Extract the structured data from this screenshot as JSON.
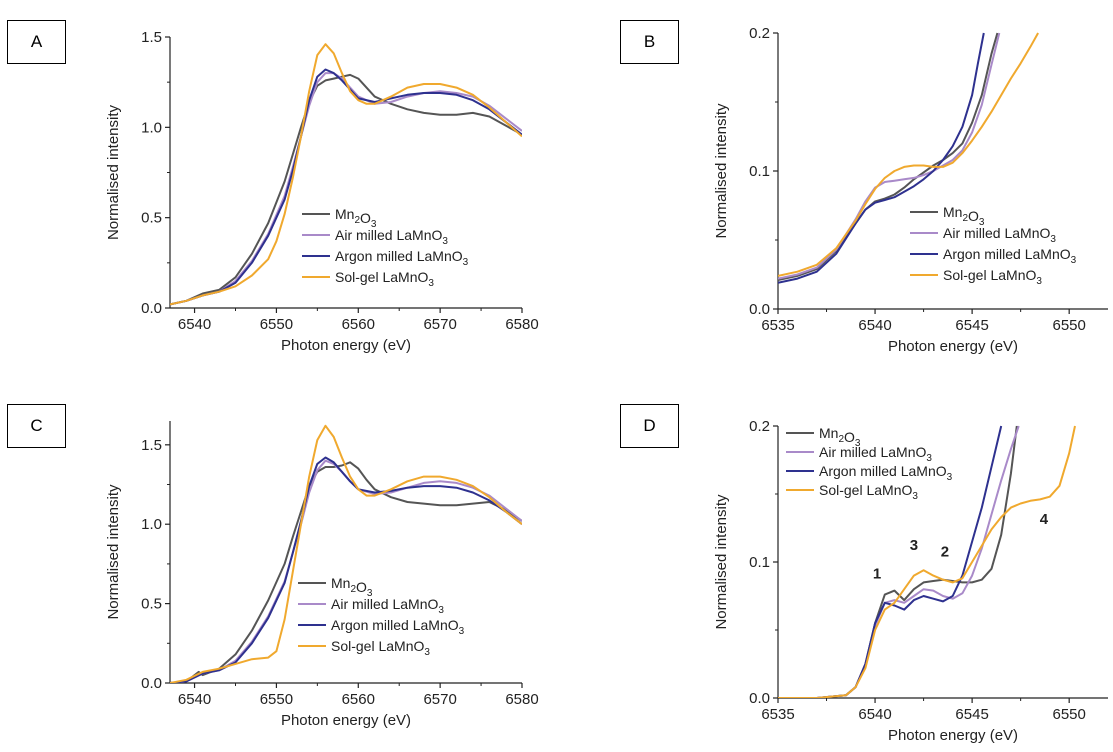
{
  "colors": {
    "mn2o3": "#555555",
    "air": "#a98ac9",
    "argon": "#2e318f",
    "solgel": "#f0a92e"
  },
  "chart_data": [
    {
      "panel": "A",
      "type": "line",
      "xlabel": "Photon energy (eV)",
      "ylabel": "Normalised intensity",
      "xlim": [
        6537,
        6580
      ],
      "ylim": [
        0,
        1.5
      ],
      "xticks": [
        6540,
        6550,
        6560,
        6570,
        6580
      ],
      "yticks": [
        0.0,
        0.5,
        1.0,
        1.5
      ],
      "ytick_labels": [
        "0.0",
        "0.5",
        "1.0",
        "1.5"
      ],
      "grid": false,
      "legend_position": "lower-right",
      "series": [
        {
          "name": "Mn<sub>2</sub>O<sub>3</sub>",
          "color_key": "mn2o3",
          "x": [
            6537,
            6539,
            6541,
            6543,
            6545,
            6547,
            6549,
            6551,
            6552,
            6553,
            6554,
            6555,
            6556,
            6557,
            6558,
            6559,
            6560,
            6561,
            6562,
            6564,
            6566,
            6568,
            6570,
            6572,
            6574,
            6576,
            6578,
            6580
          ],
          "y": [
            0.02,
            0.04,
            0.08,
            0.1,
            0.17,
            0.3,
            0.47,
            0.7,
            0.85,
            1.0,
            1.14,
            1.23,
            1.26,
            1.27,
            1.28,
            1.29,
            1.27,
            1.22,
            1.17,
            1.13,
            1.1,
            1.08,
            1.07,
            1.07,
            1.08,
            1.06,
            1.01,
            0.96
          ]
        },
        {
          "name": "Air milled LaMnO<sub>3</sub>",
          "color_key": "air",
          "x": [
            6537,
            6539,
            6541,
            6543,
            6545,
            6547,
            6549,
            6551,
            6552,
            6553,
            6554,
            6555,
            6556,
            6557,
            6558,
            6559,
            6560,
            6562,
            6564,
            6566,
            6568,
            6570,
            6572,
            6574,
            6576,
            6578,
            6580
          ],
          "y": [
            0.02,
            0.04,
            0.07,
            0.09,
            0.15,
            0.26,
            0.41,
            0.62,
            0.78,
            0.95,
            1.12,
            1.25,
            1.3,
            1.3,
            1.27,
            1.22,
            1.17,
            1.13,
            1.14,
            1.17,
            1.19,
            1.2,
            1.19,
            1.17,
            1.12,
            1.05,
            0.98
          ]
        },
        {
          "name": "Argon milled LaMnO<sub>3</sub>",
          "color_key": "argon",
          "x": [
            6537,
            6539,
            6541,
            6543,
            6545,
            6547,
            6549,
            6551,
            6552,
            6553,
            6554,
            6555,
            6556,
            6557,
            6558,
            6559,
            6560,
            6562,
            6564,
            6566,
            6568,
            6570,
            6572,
            6574,
            6576,
            6578,
            6580
          ],
          "y": [
            0.02,
            0.04,
            0.07,
            0.09,
            0.14,
            0.25,
            0.4,
            0.6,
            0.76,
            0.95,
            1.15,
            1.28,
            1.32,
            1.3,
            1.26,
            1.21,
            1.16,
            1.14,
            1.16,
            1.18,
            1.19,
            1.19,
            1.18,
            1.15,
            1.1,
            1.03,
            0.96
          ]
        },
        {
          "name": "Sol-gel LaMnO<sub>3</sub>",
          "color_key": "solgel",
          "x": [
            6537,
            6539,
            6541,
            6543,
            6545,
            6547,
            6549,
            6550,
            6551,
            6552,
            6553,
            6554,
            6555,
            6556,
            6557,
            6558,
            6559,
            6560,
            6561,
            6562,
            6564,
            6566,
            6568,
            6570,
            6572,
            6574,
            6576,
            6578,
            6580
          ],
          "y": [
            0.02,
            0.04,
            0.07,
            0.09,
            0.12,
            0.18,
            0.27,
            0.37,
            0.52,
            0.72,
            0.95,
            1.2,
            1.4,
            1.46,
            1.41,
            1.3,
            1.2,
            1.15,
            1.13,
            1.13,
            1.17,
            1.22,
            1.24,
            1.24,
            1.22,
            1.18,
            1.11,
            1.03,
            0.95
          ]
        }
      ]
    },
    {
      "panel": "B",
      "type": "line",
      "xlabel": "Photon energy (eV)",
      "ylabel": "Normalised intensity",
      "xlim": [
        6535,
        6552
      ],
      "ylim": [
        0,
        0.2
      ],
      "xticks": [
        6535,
        6540,
        6545,
        6550
      ],
      "yticks": [
        0.0,
        0.1,
        0.2
      ],
      "ytick_labels": [
        "0.0",
        "0.1",
        "0.2"
      ],
      "grid": false,
      "legend_position": "lower-right",
      "series": [
        {
          "name": "Mn<sub>2</sub>O<sub>3</sub>",
          "color_key": "mn2o3",
          "x": [
            6535,
            6536,
            6537,
            6538,
            6539,
            6539.5,
            6540,
            6540.5,
            6541,
            6541.5,
            6542,
            6542.5,
            6543,
            6543.5,
            6544,
            6544.5,
            6545,
            6545.5,
            6546,
            6546.3
          ],
          "y": [
            0.021,
            0.024,
            0.029,
            0.042,
            0.062,
            0.072,
            0.078,
            0.08,
            0.083,
            0.088,
            0.094,
            0.099,
            0.104,
            0.108,
            0.113,
            0.12,
            0.135,
            0.155,
            0.185,
            0.2
          ]
        },
        {
          "name": "Air milled LaMnO<sub>3</sub>",
          "color_key": "air",
          "x": [
            6535,
            6536,
            6537,
            6538,
            6539,
            6539.5,
            6540,
            6540.5,
            6541,
            6541.5,
            6542,
            6542.5,
            6543,
            6543.5,
            6544,
            6544.5,
            6545,
            6545.5,
            6546,
            6546.4
          ],
          "y": [
            0.022,
            0.025,
            0.03,
            0.043,
            0.065,
            0.078,
            0.088,
            0.092,
            0.093,
            0.094,
            0.095,
            0.097,
            0.1,
            0.104,
            0.108,
            0.115,
            0.128,
            0.148,
            0.177,
            0.2
          ]
        },
        {
          "name": "Argon milled LaMnO<sub>3</sub>",
          "color_key": "argon",
          "x": [
            6535,
            6536,
            6537,
            6538,
            6539,
            6539.5,
            6540,
            6540.5,
            6541,
            6541.5,
            6542,
            6542.5,
            6543,
            6543.5,
            6544,
            6544.5,
            6545,
            6545.3,
            6545.6
          ],
          "y": [
            0.019,
            0.022,
            0.027,
            0.04,
            0.062,
            0.072,
            0.077,
            0.079,
            0.081,
            0.085,
            0.089,
            0.094,
            0.1,
            0.108,
            0.118,
            0.132,
            0.155,
            0.178,
            0.2
          ]
        },
        {
          "name": "Sol-gel LaMnO<sub>3</sub>",
          "color_key": "solgel",
          "x": [
            6535,
            6536,
            6537,
            6538,
            6539,
            6539.5,
            6540,
            6540.5,
            6541,
            6541.5,
            6542,
            6542.5,
            6543,
            6543.5,
            6544,
            6544.5,
            6545,
            6545.5,
            6546,
            6546.5,
            6547,
            6547.5,
            6548,
            6548.4
          ],
          "y": [
            0.024,
            0.027,
            0.032,
            0.044,
            0.064,
            0.076,
            0.087,
            0.095,
            0.1,
            0.103,
            0.104,
            0.104,
            0.103,
            0.103,
            0.106,
            0.113,
            0.122,
            0.132,
            0.143,
            0.155,
            0.167,
            0.178,
            0.19,
            0.2
          ]
        }
      ]
    },
    {
      "panel": "C",
      "type": "line",
      "xlabel": "Photon energy (eV)",
      "ylabel": "Normalised intensity",
      "xlim": [
        6537,
        6580
      ],
      "ylim": [
        0,
        1.65
      ],
      "xticks": [
        6540,
        6550,
        6560,
        6570,
        6580
      ],
      "yticks": [
        0.0,
        0.5,
        1.0,
        1.5
      ],
      "ytick_labels": [
        "0.0",
        "0.5",
        "1.0",
        "1.5"
      ],
      "grid": false,
      "legend_position": "lower-right",
      "series": [
        {
          "name": "Mn<sub>2</sub>O<sub>3</sub>",
          "color_key": "mn2o3",
          "x": [
            6537,
            6539,
            6540.5,
            6541,
            6542,
            6543,
            6545,
            6547,
            6549,
            6551,
            6552,
            6553,
            6554,
            6555,
            6556,
            6557,
            6558,
            6559,
            6560,
            6561,
            6562,
            6564,
            6566,
            6568,
            6570,
            6572,
            6574,
            6576,
            6578,
            6580
          ],
          "y": [
            0.0,
            0.01,
            0.07,
            0.05,
            0.07,
            0.09,
            0.18,
            0.33,
            0.52,
            0.75,
            0.92,
            1.08,
            1.24,
            1.33,
            1.36,
            1.36,
            1.37,
            1.39,
            1.35,
            1.28,
            1.22,
            1.17,
            1.14,
            1.13,
            1.12,
            1.12,
            1.13,
            1.14,
            1.09,
            1.02
          ]
        },
        {
          "name": "Air milled LaMnO<sub>3</sub>",
          "color_key": "air",
          "x": [
            6537,
            6539,
            6541,
            6543,
            6545,
            6547,
            6549,
            6551,
            6552,
            6553,
            6554,
            6555,
            6556,
            6557,
            6558,
            6559,
            6560,
            6562,
            6564,
            6566,
            6568,
            6570,
            6572,
            6574,
            6576,
            6578,
            6580
          ],
          "y": [
            0.0,
            0.01,
            0.06,
            0.08,
            0.14,
            0.26,
            0.42,
            0.64,
            0.82,
            1.0,
            1.2,
            1.34,
            1.4,
            1.38,
            1.33,
            1.27,
            1.22,
            1.19,
            1.2,
            1.23,
            1.26,
            1.27,
            1.26,
            1.23,
            1.18,
            1.1,
            1.02
          ]
        },
        {
          "name": "Argon milled LaMnO<sub>3</sub>",
          "color_key": "argon",
          "x": [
            6537,
            6539,
            6541,
            6543,
            6545,
            6547,
            6549,
            6551,
            6552,
            6553,
            6554,
            6555,
            6556,
            6557,
            6558,
            6559,
            6560,
            6562,
            6564,
            6566,
            6568,
            6570,
            6572,
            6574,
            6576,
            6578,
            6580
          ],
          "y": [
            0.0,
            0.01,
            0.06,
            0.08,
            0.13,
            0.25,
            0.41,
            0.63,
            0.82,
            1.02,
            1.24,
            1.38,
            1.42,
            1.39,
            1.33,
            1.27,
            1.22,
            1.2,
            1.21,
            1.23,
            1.24,
            1.24,
            1.23,
            1.2,
            1.15,
            1.08,
            1.0
          ]
        },
        {
          "name": "Sol-gel LaMnO<sub>3</sub>",
          "color_key": "solgel",
          "x": [
            6537,
            6539,
            6541,
            6543,
            6545,
            6547,
            6549,
            6550,
            6551,
            6552,
            6553,
            6554,
            6555,
            6556,
            6557,
            6558,
            6559,
            6560,
            6561,
            6562,
            6564,
            6566,
            6568,
            6570,
            6572,
            6574,
            6576,
            6578,
            6580
          ],
          "y": [
            0.0,
            0.02,
            0.07,
            0.09,
            0.12,
            0.15,
            0.16,
            0.2,
            0.4,
            0.7,
            1.0,
            1.3,
            1.53,
            1.62,
            1.55,
            1.42,
            1.3,
            1.22,
            1.18,
            1.18,
            1.22,
            1.27,
            1.3,
            1.3,
            1.28,
            1.24,
            1.17,
            1.08,
            1.0
          ]
        }
      ]
    },
    {
      "panel": "D",
      "type": "line",
      "xlabel": "Photon energy (eV)",
      "ylabel": "Normalised intensity",
      "xlim": [
        6535,
        6552
      ],
      "ylim": [
        0,
        0.2
      ],
      "xticks": [
        6535,
        6540,
        6545,
        6550
      ],
      "yticks": [
        0.0,
        0.1,
        0.2
      ],
      "ytick_labels": [
        "0.0",
        "0.1",
        "0.2"
      ],
      "grid": false,
      "legend_position": "top-left",
      "annotations": [
        {
          "text": "1",
          "x": 6540.1,
          "y": 0.088
        },
        {
          "text": "3",
          "x": 6542.0,
          "y": 0.109
        },
        {
          "text": "2",
          "x": 6543.6,
          "y": 0.104
        },
        {
          "text": "4",
          "x": 6548.7,
          "y": 0.128
        }
      ],
      "series": [
        {
          "name": "Mn<sub>2</sub>O<sub>3</sub>",
          "color_key": "mn2o3",
          "x": [
            6535,
            6537,
            6538.5,
            6539,
            6539.5,
            6540,
            6540.5,
            6541,
            6541.5,
            6542,
            6542.5,
            6543,
            6543.5,
            6544,
            6544.5,
            6545,
            6545.5,
            6546,
            6546.5,
            6547,
            6547.3
          ],
          "y": [
            0.0,
            0.0,
            0.002,
            0.008,
            0.025,
            0.055,
            0.076,
            0.079,
            0.072,
            0.08,
            0.085,
            0.086,
            0.087,
            0.086,
            0.085,
            0.085,
            0.087,
            0.095,
            0.12,
            0.165,
            0.2
          ]
        },
        {
          "name": "Air milled LaMnO<sub>3</sub>",
          "color_key": "air",
          "x": [
            6535,
            6537,
            6538.5,
            6539,
            6539.5,
            6540,
            6540.5,
            6541,
            6541.5,
            6542,
            6542.5,
            6543,
            6543.5,
            6544,
            6544.5,
            6545,
            6545.5,
            6546,
            6546.5,
            6547,
            6547.4
          ],
          "y": [
            0.0,
            0.0,
            0.002,
            0.008,
            0.025,
            0.053,
            0.07,
            0.072,
            0.07,
            0.075,
            0.08,
            0.079,
            0.075,
            0.073,
            0.077,
            0.09,
            0.11,
            0.135,
            0.16,
            0.183,
            0.2
          ]
        },
        {
          "name": "Argon milled LaMnO<sub>3</sub>",
          "color_key": "argon",
          "x": [
            6535,
            6537,
            6538.5,
            6539,
            6539.5,
            6540,
            6540.5,
            6541,
            6541.5,
            6542,
            6542.5,
            6543,
            6543.5,
            6544,
            6544.5,
            6545,
            6545.5,
            6546,
            6546.5
          ],
          "y": [
            0.0,
            0.0,
            0.002,
            0.008,
            0.025,
            0.055,
            0.07,
            0.068,
            0.065,
            0.072,
            0.075,
            0.073,
            0.071,
            0.075,
            0.09,
            0.115,
            0.14,
            0.17,
            0.2
          ]
        },
        {
          "name": "Sol-gel LaMnO<sub>3</sub>",
          "color_key": "solgel",
          "x": [
            6535,
            6537,
            6538.5,
            6539,
            6539.5,
            6540,
            6540.5,
            6541,
            6541.5,
            6542,
            6542.5,
            6543,
            6543.5,
            6544,
            6544.5,
            6545,
            6545.5,
            6546,
            6546.5,
            6547,
            6547.5,
            6548,
            6548.5,
            6549,
            6549.5,
            6550,
            6550.3
          ],
          "y": [
            0.0,
            0.0,
            0.002,
            0.008,
            0.022,
            0.05,
            0.065,
            0.07,
            0.08,
            0.09,
            0.094,
            0.09,
            0.087,
            0.085,
            0.088,
            0.1,
            0.112,
            0.124,
            0.133,
            0.14,
            0.143,
            0.145,
            0.146,
            0.148,
            0.156,
            0.18,
            0.2
          ]
        }
      ]
    }
  ],
  "panels": [
    {
      "label": "A"
    },
    {
      "label": "B"
    },
    {
      "label": "C"
    },
    {
      "label": "D"
    }
  ]
}
